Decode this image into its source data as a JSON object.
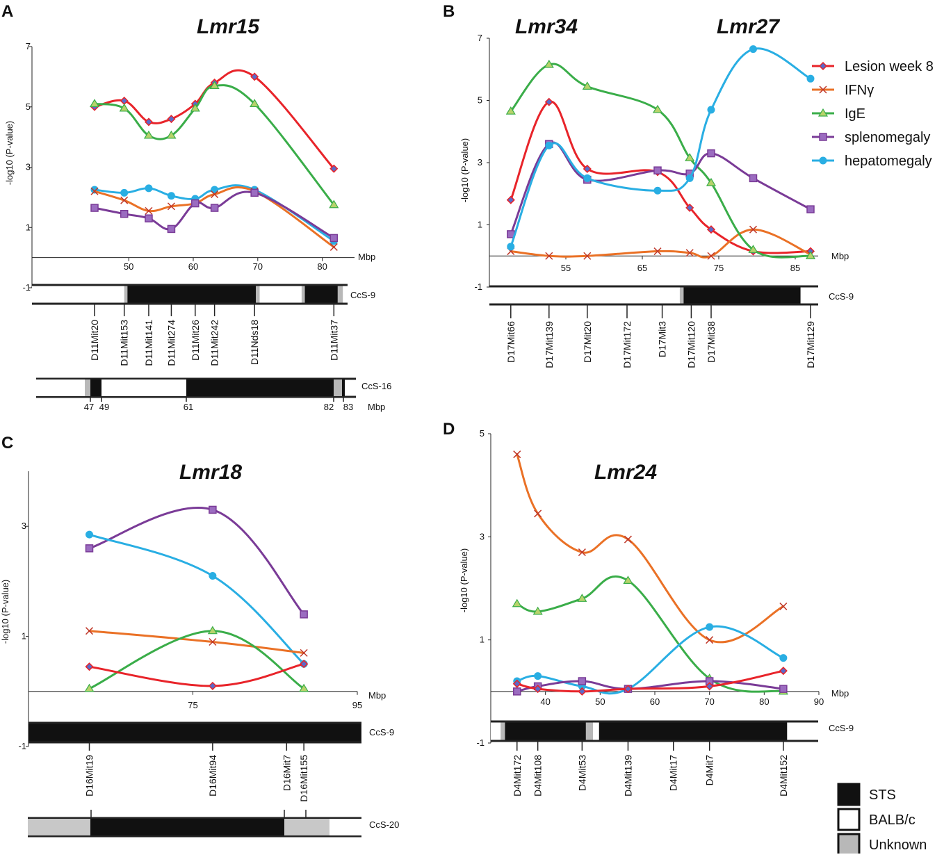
{
  "colors": {
    "lesion_week_8": "#e8242a",
    "ifng": "#ea7126",
    "ige": "#3aad49",
    "splenomegaly": "#7a3b97",
    "hepatomegaly": "#29aee3",
    "sts": "#111111",
    "balbc": "#ffffff",
    "unknown": "#b8b8b8"
  },
  "legend": {
    "items": [
      {
        "key": "lesion_week_8",
        "label": "Lesion week 8",
        "marker": "diamond"
      },
      {
        "key": "ifng",
        "label": "IFNγ",
        "marker": "cross"
      },
      {
        "key": "ige",
        "label": "IgE",
        "marker": "triangle"
      },
      {
        "key": "splenomegaly",
        "label": "splenomegaly",
        "marker": "square"
      },
      {
        "key": "hepatomegaly",
        "label": "hepatomegaly",
        "marker": "circle"
      }
    ]
  },
  "genotype_key": [
    {
      "label": "STS",
      "color": "#111111"
    },
    {
      "label": "BALB/c",
      "color": "#ffffff"
    },
    {
      "label": "Unknown",
      "color": "#b8b8b8"
    }
  ],
  "chart_data": [
    {
      "panel": "A",
      "type": "line",
      "title": "Lmr15",
      "ylabel": "-log10 (P-value)",
      "xlabel": "Mbp",
      "xlim": [
        35,
        85
      ],
      "ylim": [
        -1,
        7
      ],
      "xticks": [
        50,
        60,
        70,
        80
      ],
      "yticks": [
        -1,
        1,
        3,
        5,
        7
      ],
      "x": [
        44.7,
        49.3,
        53.1,
        56.6,
        60.3,
        63.3,
        69.5,
        81.8
      ],
      "series": [
        {
          "key": "lesion_week_8",
          "name": "Lesion week 8",
          "values": [
            5.0,
            5.2,
            4.5,
            4.6,
            5.1,
            5.8,
            6.0,
            2.95
          ]
        },
        {
          "key": "ige",
          "name": "IgE",
          "values": [
            5.1,
            4.95,
            4.05,
            4.05,
            4.95,
            5.7,
            5.1,
            1.75
          ]
        },
        {
          "key": "hepatomegaly",
          "name": "hepatomegaly",
          "values": [
            2.25,
            2.15,
            2.3,
            2.05,
            1.95,
            2.25,
            2.25,
            0.55
          ]
        },
        {
          "key": "ifng",
          "name": "IFNγ",
          "values": [
            2.2,
            1.9,
            1.55,
            1.7,
            1.8,
            2.1,
            2.2,
            0.35
          ]
        },
        {
          "key": "splenomegaly",
          "name": "splenomegaly",
          "values": [
            1.65,
            1.45,
            1.3,
            0.95,
            1.8,
            1.65,
            2.15,
            0.65
          ]
        }
      ],
      "strains": [
        {
          "label": "CcS-9",
          "segments": [
            {
              "from": 35,
              "to": 49.3,
              "type": "balbc"
            },
            {
              "from": 49.3,
              "to": 49.8,
              "type": "unknown"
            },
            {
              "from": 49.8,
              "to": 69.7,
              "type": "sts"
            },
            {
              "from": 69.7,
              "to": 70.3,
              "type": "unknown"
            },
            {
              "from": 70.3,
              "to": 76.8,
              "type": "balbc"
            },
            {
              "from": 76.8,
              "to": 77.3,
              "type": "unknown"
            },
            {
              "from": 77.3,
              "to": 82.4,
              "type": "sts"
            },
            {
              "from": 82.4,
              "to": 83.2,
              "type": "unknown"
            },
            {
              "from": 83.2,
              "to": 85,
              "type": "balbc"
            }
          ]
        }
      ],
      "markers": [
        {
          "name": "D11Mit20",
          "x": 44.7
        },
        {
          "name": "D11Mit153",
          "x": 49.3
        },
        {
          "name": "D11Mit141",
          "x": 53.1
        },
        {
          "name": "D11Mit274",
          "x": 56.6
        },
        {
          "name": "D11Mit26",
          "x": 60.3
        },
        {
          "name": "D11Mit242",
          "x": 63.3
        },
        {
          "name": "D11Nds18",
          "x": 69.5
        },
        {
          "name": "D11Mit37",
          "x": 81.8
        }
      ],
      "extra_strain": {
        "label": "CcS-16",
        "unit": "Mbp",
        "ticks": [
          "47",
          "49",
          "61",
          "82",
          "83"
        ]
      }
    },
    {
      "panel": "B",
      "type": "line",
      "title": "Lmr34",
      "title2": "Lmr27",
      "ylabel": "-log10 (P-value)",
      "xlabel": "Mbp",
      "xlim": [
        45,
        88
      ],
      "ylim": [
        -1,
        7
      ],
      "xticks": [
        55,
        65,
        75,
        85
      ],
      "yticks": [
        -1,
        1,
        3,
        5,
        7
      ],
      "x": [
        47.8,
        52.8,
        57.8,
        67.0,
        71.2,
        74.0,
        79.5,
        87.0
      ],
      "series": [
        {
          "key": "lesion_week_8",
          "name": "Lesion week 8",
          "values": [
            1.8,
            4.95,
            2.8,
            2.7,
            1.55,
            0.85,
            0.15,
            0.15
          ]
        },
        {
          "key": "ifng",
          "name": "IFNγ",
          "values": [
            0.15,
            0.0,
            0.0,
            0.15,
            0.1,
            0.0,
            0.85,
            0.05
          ]
        },
        {
          "key": "ige",
          "name": "IgE",
          "values": [
            4.65,
            6.15,
            5.45,
            4.7,
            3.15,
            2.35,
            0.2,
            0.0
          ]
        },
        {
          "key": "splenomegaly",
          "name": "splenomegaly",
          "values": [
            0.7,
            3.6,
            2.45,
            2.75,
            2.65,
            3.3,
            2.5,
            1.5
          ]
        },
        {
          "key": "hepatomegaly",
          "name": "hepatomegaly",
          "values": [
            0.3,
            3.55,
            2.5,
            2.1,
            2.5,
            4.7,
            6.65,
            5.7
          ]
        }
      ],
      "strains": [
        {
          "label": "CcS-9",
          "segments": [
            {
              "from": 45,
              "to": 69.9,
              "type": "balbc"
            },
            {
              "from": 69.9,
              "to": 70.4,
              "type": "unknown"
            },
            {
              "from": 70.4,
              "to": 85.7,
              "type": "sts"
            },
            {
              "from": 85.7,
              "to": 88,
              "type": "balbc"
            }
          ]
        }
      ],
      "markers": [
        {
          "name": "D17Mit66",
          "x": 47.8
        },
        {
          "name": "D17Mit139",
          "x": 52.8
        },
        {
          "name": "D17Mit20",
          "x": 57.8
        },
        {
          "name": "D17Mit172",
          "x": 63.0
        },
        {
          "name": "D17Mit3",
          "x": 67.6
        },
        {
          "name": "D17Mit120",
          "x": 71.4
        },
        {
          "name": "D17Mit38",
          "x": 74.0
        },
        {
          "name": "D17Mit129",
          "x": 87.0
        }
      ]
    },
    {
      "panel": "C",
      "type": "line",
      "title": "Lmr18",
      "ylabel": "-log10 (P-value)",
      "xlabel": "Mbp",
      "xlim": [
        55,
        95
      ],
      "ylim": [
        -1,
        4
      ],
      "xticks": [
        75,
        95
      ],
      "yticks": [
        -1,
        1,
        3
      ],
      "x": [
        62.4,
        77.4,
        88.5
      ],
      "series": [
        {
          "key": "splenomegaly",
          "name": "splenomegaly",
          "values": [
            2.6,
            3.3,
            1.4
          ]
        },
        {
          "key": "hepatomegaly",
          "name": "hepatomegaly",
          "values": [
            2.85,
            2.1,
            0.5
          ]
        },
        {
          "key": "ifng",
          "name": "IFNγ",
          "values": [
            1.1,
            0.9,
            0.7
          ]
        },
        {
          "key": "ige",
          "name": "IgE",
          "values": [
            0.05,
            1.1,
            0.05
          ]
        },
        {
          "key": "lesion_week_8",
          "name": "Lesion week 8",
          "values": [
            0.45,
            0.1,
            0.5
          ]
        }
      ],
      "strains": [
        {
          "label": "CcS-9",
          "segments": [
            {
              "from": 55,
              "to": 95.5,
              "type": "sts"
            }
          ]
        }
      ],
      "markers": [
        {
          "name": "D16Mit19",
          "x": 62.4
        },
        {
          "name": "D16Mit94",
          "x": 77.4
        },
        {
          "name": "D16Mit7",
          "x": 86.4
        },
        {
          "name": "D16Mit155",
          "x": 88.5
        }
      ],
      "extra_strain": {
        "label": "CcS-20"
      }
    },
    {
      "panel": "D",
      "type": "line",
      "title": "Lmr24",
      "ylabel": "-log10 (P-value)",
      "xlabel": "Mbp",
      "xlim": [
        30,
        90
      ],
      "ylim": [
        -1,
        5
      ],
      "xticks": [
        40,
        50,
        60,
        70,
        80,
        90
      ],
      "yticks": [
        -1,
        1,
        3,
        5
      ],
      "x": [
        34.8,
        38.6,
        46.7,
        55.1,
        70.0,
        83.5
      ],
      "series": [
        {
          "key": "ifng",
          "name": "IFNγ",
          "values": [
            4.6,
            3.45,
            2.7,
            2.95,
            1.0,
            1.65
          ]
        },
        {
          "key": "ige",
          "name": "IgE",
          "values": [
            1.7,
            1.55,
            1.8,
            2.15,
            0.25,
            0.0
          ]
        },
        {
          "key": "hepatomegaly",
          "name": "hepatomegaly",
          "values": [
            0.2,
            0.3,
            0.1,
            0.05,
            1.25,
            0.65
          ]
        },
        {
          "key": "splenomegaly",
          "name": "splenomegaly",
          "values": [
            0.0,
            0.1,
            0.2,
            0.05,
            0.2,
            0.05
          ]
        },
        {
          "key": "lesion_week_8",
          "name": "Lesion week 8",
          "values": [
            0.15,
            0.05,
            0.0,
            0.05,
            0.1,
            0.4
          ]
        }
      ],
      "strains": [
        {
          "label": "CcS-9",
          "segments": [
            {
              "from": 30,
              "to": 31.8,
              "type": "balbc"
            },
            {
              "from": 31.8,
              "to": 32.6,
              "type": "unknown"
            },
            {
              "from": 32.6,
              "to": 47.4,
              "type": "sts"
            },
            {
              "from": 47.4,
              "to": 48.7,
              "type": "unknown"
            },
            {
              "from": 48.7,
              "to": 49.8,
              "type": "balbc"
            },
            {
              "from": 49.8,
              "to": 84.2,
              "type": "sts"
            },
            {
              "from": 84.2,
              "to": 90,
              "type": "balbc"
            }
          ]
        }
      ],
      "markers": [
        {
          "name": "D4Mit172",
          "x": 34.8
        },
        {
          "name": "D4Mit108",
          "x": 38.6
        },
        {
          "name": "D4Mit53",
          "x": 46.7
        },
        {
          "name": "D4Mit139",
          "x": 55.1
        },
        {
          "name": "D4Mit17",
          "x": 63.4
        },
        {
          "name": "D4Mit7",
          "x": 70.0
        },
        {
          "name": "D4Mit152",
          "x": 83.5
        }
      ]
    }
  ]
}
